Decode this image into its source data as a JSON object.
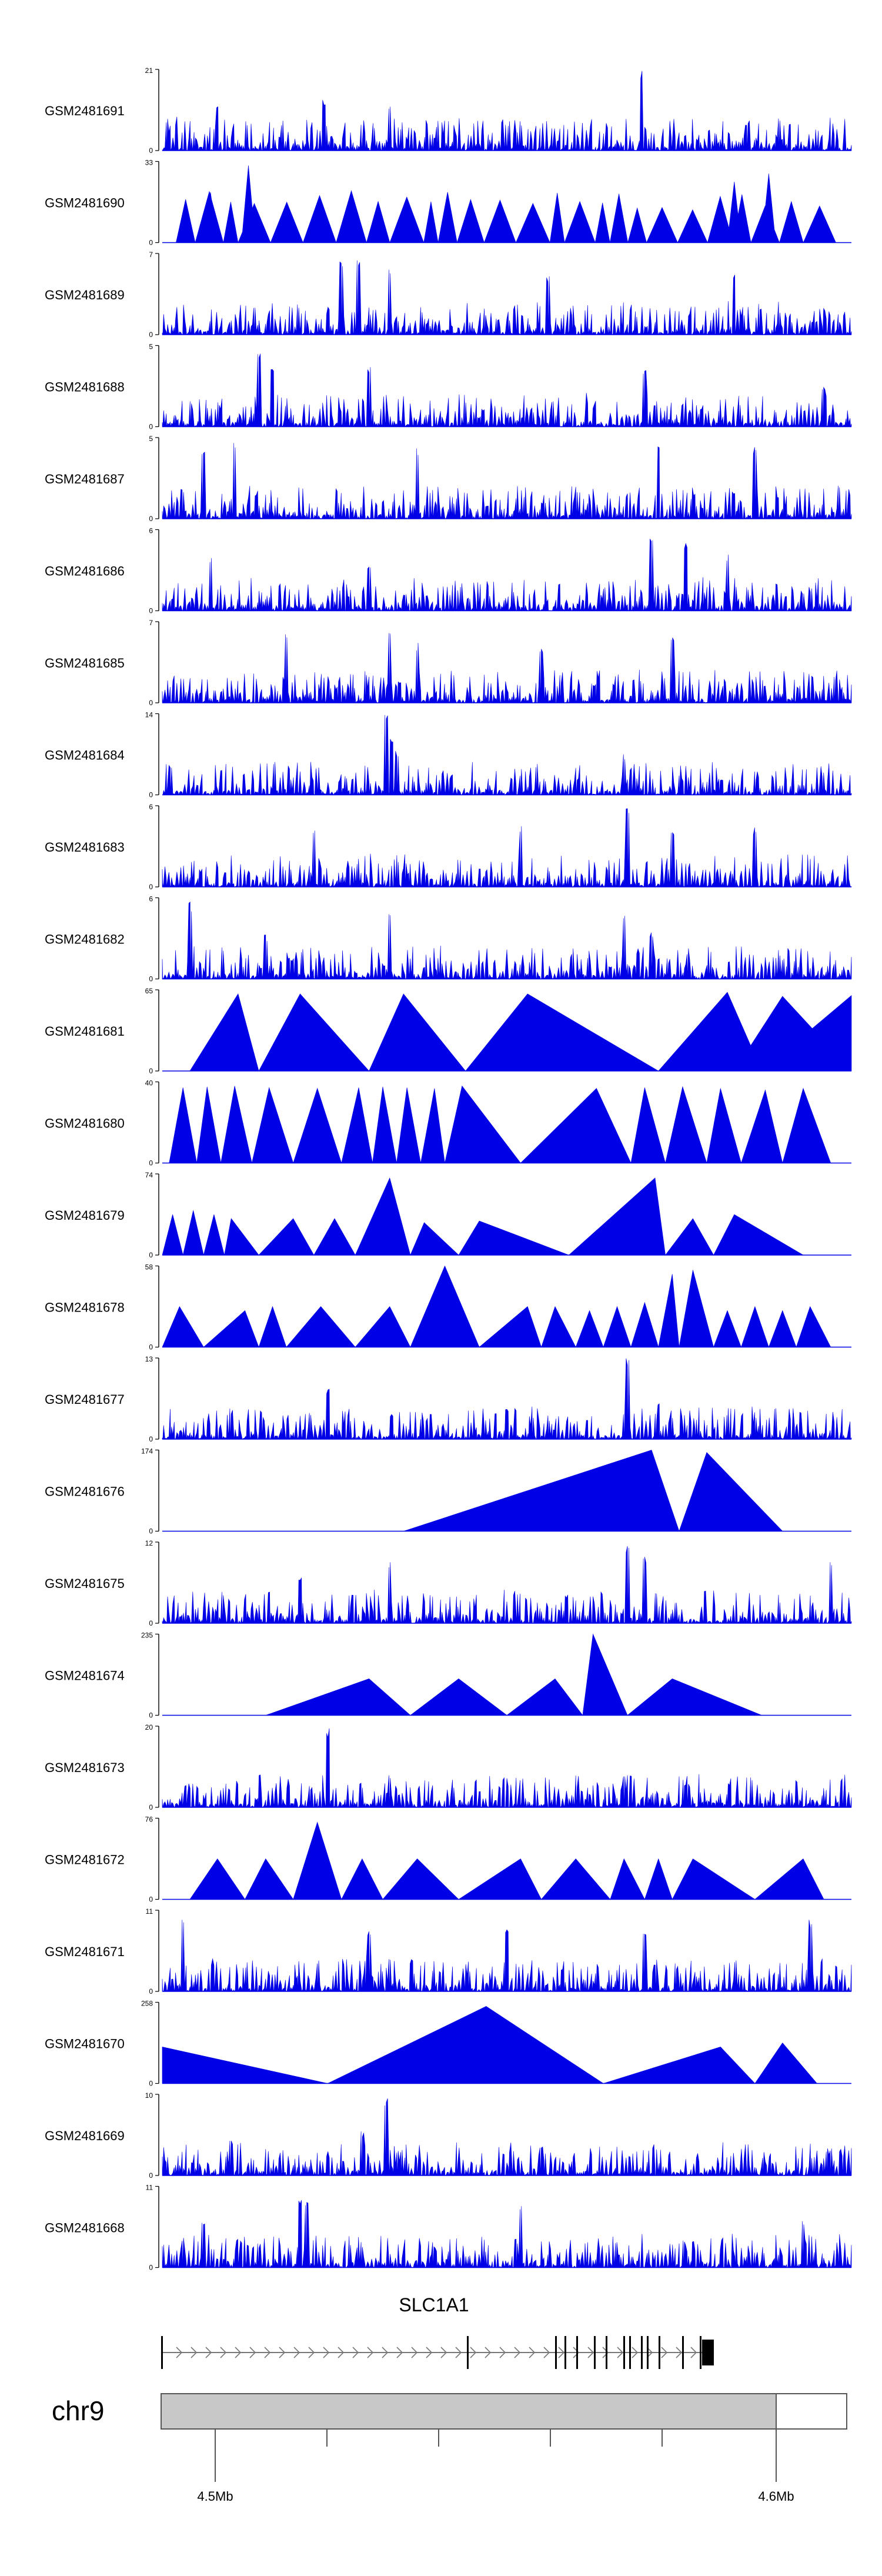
{
  "chart_data": {
    "type": "area",
    "title": "",
    "chromosome": "chr9",
    "gene": "SLC1A1",
    "x_axis": {
      "unit": "Mb",
      "tick_labels": [
        "4.5Mb",
        "4.6Mb"
      ],
      "range_mb": [
        4.4905,
        4.6125
      ]
    },
    "colors": {
      "signal": "#0000e6",
      "axis": "#000000",
      "ideogram": "#c8c8c8",
      "gene": "#000000"
    },
    "tracks": [
      {
        "name": "GSM2481691",
        "ymax": 21,
        "style": "spiky",
        "seed": 11,
        "peaks": [
          [
            0.08,
            0.55
          ],
          [
            0.235,
            0.65
          ],
          [
            0.33,
            0.6
          ],
          [
            0.695,
            1.0
          ],
          [
            0.85,
            0.35
          ]
        ]
      },
      {
        "name": "GSM2481690",
        "ymax": 33,
        "style": "triangles",
        "seed": 12,
        "peaks": [
          [
            0.07,
            0.62
          ],
          [
            0.125,
            0.95
          ],
          [
            0.88,
            0.85
          ],
          [
            0.83,
            0.75
          ]
        ]
      },
      {
        "name": "GSM2481689",
        "ymax": 7,
        "style": "spiky",
        "seed": 13,
        "peaks": [
          [
            0.26,
            0.9
          ],
          [
            0.285,
            1.0
          ],
          [
            0.33,
            0.85
          ],
          [
            0.56,
            0.75
          ],
          [
            0.83,
            0.8
          ]
        ]
      },
      {
        "name": "GSM2481688",
        "ymax": 5,
        "style": "spiky",
        "seed": 14,
        "peaks": [
          [
            0.14,
            1.0
          ],
          [
            0.16,
            0.8
          ],
          [
            0.3,
            0.75
          ],
          [
            0.7,
            0.7
          ],
          [
            0.96,
            0.5
          ]
        ]
      },
      {
        "name": "GSM2481687",
        "ymax": 5,
        "style": "spiky",
        "seed": 15,
        "peaks": [
          [
            0.06,
            0.9
          ],
          [
            0.105,
            0.95
          ],
          [
            0.37,
            0.9
          ],
          [
            0.72,
            0.95
          ],
          [
            0.86,
            0.9
          ]
        ]
      },
      {
        "name": "GSM2481686",
        "ymax": 6,
        "style": "spiky",
        "seed": 16,
        "peaks": [
          [
            0.07,
            0.65
          ],
          [
            0.71,
            1.0
          ],
          [
            0.76,
            0.85
          ],
          [
            0.82,
            0.7
          ],
          [
            0.3,
            0.55
          ]
        ]
      },
      {
        "name": "GSM2481685",
        "ymax": 7,
        "style": "spiky",
        "seed": 17,
        "peaks": [
          [
            0.18,
            0.85
          ],
          [
            0.33,
            1.0
          ],
          [
            0.37,
            0.75
          ],
          [
            0.55,
            0.7
          ],
          [
            0.74,
            0.9
          ]
        ]
      },
      {
        "name": "GSM2481684",
        "ymax": 14,
        "style": "spiky",
        "seed": 18,
        "peaks": [
          [
            0.325,
            1.0
          ],
          [
            0.333,
            0.7
          ],
          [
            0.34,
            0.55
          ],
          [
            0.67,
            0.5
          ],
          [
            0.68,
            0.35
          ]
        ]
      },
      {
        "name": "GSM2481683",
        "ymax": 6,
        "style": "spiky",
        "seed": 19,
        "peaks": [
          [
            0.22,
            0.75
          ],
          [
            0.52,
            0.8
          ],
          [
            0.675,
            1.0
          ],
          [
            0.74,
            0.7
          ],
          [
            0.86,
            0.75
          ]
        ]
      },
      {
        "name": "GSM2481682",
        "ymax": 6,
        "style": "spiky",
        "seed": 20,
        "peaks": [
          [
            0.04,
            0.95
          ],
          [
            0.33,
            0.85
          ],
          [
            0.67,
            0.8
          ],
          [
            0.71,
            0.6
          ],
          [
            0.15,
            0.55
          ]
        ]
      },
      {
        "name": "GSM2481681",
        "ymax": 65,
        "style": "triangles",
        "seed": 21,
        "tri": [
          [
            0.04,
            0.11,
            0.14,
            0.95
          ],
          [
            0.14,
            0.2,
            0.3,
            0.95
          ],
          [
            0.3,
            0.35,
            0.44,
            0.95
          ],
          [
            0.44,
            0.53,
            0.72,
            0.95
          ],
          [
            0.72,
            0.82,
            0.87,
            0.97
          ],
          [
            0.83,
            0.9,
            1.0,
            0.92
          ],
          [
            0.87,
            1.0,
            1.0,
            0.93
          ]
        ]
      },
      {
        "name": "GSM2481680",
        "ymax": 40,
        "style": "triangles",
        "seed": 22,
        "tri": [
          [
            0.01,
            0.03,
            0.05,
            0.93
          ],
          [
            0.05,
            0.065,
            0.085,
            0.94
          ],
          [
            0.085,
            0.105,
            0.13,
            0.95
          ],
          [
            0.13,
            0.155,
            0.19,
            0.93
          ],
          [
            0.19,
            0.225,
            0.26,
            0.92
          ],
          [
            0.26,
            0.285,
            0.305,
            0.93
          ],
          [
            0.305,
            0.32,
            0.34,
            0.94
          ],
          [
            0.34,
            0.355,
            0.375,
            0.93
          ],
          [
            0.375,
            0.395,
            0.41,
            0.92
          ],
          [
            0.41,
            0.435,
            0.52,
            0.95
          ],
          [
            0.52,
            0.63,
            0.68,
            0.92
          ],
          [
            0.68,
            0.7,
            0.73,
            0.93
          ],
          [
            0.73,
            0.755,
            0.79,
            0.94
          ],
          [
            0.79,
            0.81,
            0.84,
            0.92
          ],
          [
            0.84,
            0.875,
            0.9,
            0.9
          ],
          [
            0.9,
            0.93,
            0.97,
            0.92
          ]
        ]
      },
      {
        "name": "GSM2481679",
        "ymax": 74,
        "style": "triangles",
        "seed": 23,
        "tri": [
          [
            0.0,
            0.015,
            0.03,
            0.5
          ],
          [
            0.03,
            0.045,
            0.06,
            0.55
          ],
          [
            0.06,
            0.075,
            0.09,
            0.5
          ],
          [
            0.09,
            0.1,
            0.14,
            0.45
          ],
          [
            0.14,
            0.19,
            0.22,
            0.45
          ],
          [
            0.22,
            0.25,
            0.28,
            0.45
          ],
          [
            0.28,
            0.33,
            0.36,
            0.95
          ],
          [
            0.36,
            0.38,
            0.43,
            0.4
          ],
          [
            0.43,
            0.46,
            0.59,
            0.42
          ],
          [
            0.59,
            0.715,
            0.73,
            0.95
          ],
          [
            0.73,
            0.77,
            0.8,
            0.45
          ],
          [
            0.8,
            0.83,
            0.93,
            0.5
          ]
        ]
      },
      {
        "name": "GSM2481678",
        "ymax": 58,
        "style": "triangles",
        "seed": 24,
        "tri": [
          [
            0.0,
            0.025,
            0.06,
            0.5
          ],
          [
            0.06,
            0.12,
            0.14,
            0.45
          ],
          [
            0.14,
            0.16,
            0.18,
            0.5
          ],
          [
            0.18,
            0.23,
            0.28,
            0.5
          ],
          [
            0.28,
            0.33,
            0.36,
            0.5
          ],
          [
            0.36,
            0.41,
            0.46,
            1.0
          ],
          [
            0.46,
            0.53,
            0.55,
            0.5
          ],
          [
            0.55,
            0.57,
            0.6,
            0.5
          ],
          [
            0.6,
            0.62,
            0.64,
            0.45
          ],
          [
            0.64,
            0.66,
            0.68,
            0.5
          ],
          [
            0.68,
            0.7,
            0.72,
            0.55
          ],
          [
            0.72,
            0.74,
            0.75,
            0.9
          ],
          [
            0.75,
            0.77,
            0.8,
            0.95
          ],
          [
            0.8,
            0.82,
            0.84,
            0.45
          ],
          [
            0.84,
            0.86,
            0.88,
            0.5
          ],
          [
            0.88,
            0.9,
            0.92,
            0.45
          ],
          [
            0.92,
            0.94,
            0.97,
            0.5
          ]
        ]
      },
      {
        "name": "GSM2481677",
        "ymax": 13,
        "style": "spiky",
        "seed": 25,
        "peaks": [
          [
            0.24,
            0.65
          ],
          [
            0.675,
            1.0
          ],
          [
            0.72,
            0.45
          ],
          [
            0.5,
            0.4
          ],
          [
            0.1,
            0.35
          ]
        ]
      },
      {
        "name": "GSM2481676",
        "ymax": 174,
        "style": "triangles",
        "seed": 26,
        "tri": [
          [
            0.35,
            0.71,
            0.75,
            1.0
          ],
          [
            0.75,
            0.79,
            0.9,
            0.97
          ]
        ]
      },
      {
        "name": "GSM2481675",
        "ymax": 12,
        "style": "spiky",
        "seed": 27,
        "peaks": [
          [
            0.33,
            0.8
          ],
          [
            0.675,
            1.0
          ],
          [
            0.7,
            0.85
          ],
          [
            0.97,
            0.8
          ],
          [
            0.2,
            0.6
          ]
        ]
      },
      {
        "name": "GSM2481674",
        "ymax": 235,
        "style": "triangles",
        "seed": 28,
        "tri": [
          [
            0.15,
            0.3,
            0.36,
            0.45
          ],
          [
            0.36,
            0.43,
            0.5,
            0.45
          ],
          [
            0.5,
            0.57,
            0.61,
            0.45
          ],
          [
            0.61,
            0.625,
            0.675,
            1.0
          ],
          [
            0.675,
            0.74,
            0.87,
            0.45
          ]
        ]
      },
      {
        "name": "GSM2481673",
        "ymax": 20,
        "style": "spiky",
        "seed": 29,
        "peaks": [
          [
            0.24,
            1.0
          ],
          [
            0.33,
            0.4
          ],
          [
            0.68,
            0.4
          ],
          [
            0.76,
            0.3
          ],
          [
            0.92,
            0.35
          ]
        ]
      },
      {
        "name": "GSM2481672",
        "ymax": 76,
        "style": "triangles",
        "seed": 30,
        "tri": [
          [
            0.04,
            0.08,
            0.12,
            0.5
          ],
          [
            0.12,
            0.15,
            0.19,
            0.5
          ],
          [
            0.19,
            0.225,
            0.26,
            0.95
          ],
          [
            0.26,
            0.29,
            0.32,
            0.5
          ],
          [
            0.32,
            0.37,
            0.43,
            0.5
          ],
          [
            0.43,
            0.52,
            0.55,
            0.5
          ],
          [
            0.55,
            0.6,
            0.65,
            0.5
          ],
          [
            0.65,
            0.67,
            0.7,
            0.5
          ],
          [
            0.7,
            0.72,
            0.74,
            0.5
          ],
          [
            0.74,
            0.77,
            0.86,
            0.5
          ],
          [
            0.86,
            0.93,
            0.96,
            0.5
          ]
        ]
      },
      {
        "name": "GSM2481671",
        "ymax": 11,
        "style": "spiky",
        "seed": 31,
        "peaks": [
          [
            0.03,
            0.95
          ],
          [
            0.3,
            0.8
          ],
          [
            0.5,
            0.85
          ],
          [
            0.7,
            0.8
          ],
          [
            0.94,
            0.9
          ]
        ]
      },
      {
        "name": "GSM2481670",
        "ymax": 258,
        "style": "triangles",
        "seed": 32,
        "tri": [
          [
            0.0,
            0.0,
            0.24,
            0.45
          ],
          [
            0.24,
            0.47,
            0.64,
            0.95
          ],
          [
            0.64,
            0.81,
            0.86,
            0.45
          ],
          [
            0.86,
            0.9,
            0.95,
            0.5
          ]
        ]
      },
      {
        "name": "GSM2481669",
        "ymax": 10,
        "style": "spiky",
        "seed": 33,
        "peaks": [
          [
            0.325,
            1.0
          ],
          [
            0.29,
            0.55
          ],
          [
            0.1,
            0.45
          ],
          [
            0.55,
            0.4
          ],
          [
            0.97,
            0.35
          ]
        ]
      },
      {
        "name": "GSM2481668",
        "ymax": 11,
        "style": "spiky",
        "seed": 34,
        "peaks": [
          [
            0.2,
            0.9
          ],
          [
            0.21,
            0.85
          ],
          [
            0.52,
            0.8
          ],
          [
            0.06,
            0.6
          ],
          [
            0.93,
            0.6
          ]
        ]
      }
    ]
  }
}
